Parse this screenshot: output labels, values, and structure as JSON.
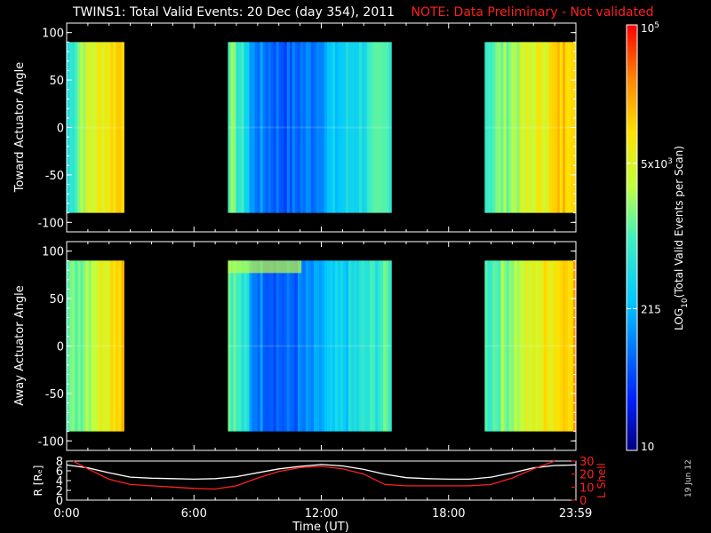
{
  "header": {
    "title": "TWINS1: Total Valid Events: 20 Dec (day 354), 2011",
    "note": "NOTE: Data Preliminary - Not validated"
  },
  "footer": {
    "date_stamp": "19 Jun 12"
  },
  "colors": {
    "background": "#000000",
    "foreground": "#ffffff",
    "note": "#ff2020",
    "r_line": "#ffffff",
    "lshell_line": "#ff2020"
  },
  "chart_data": [
    {
      "type": "heatmap",
      "panel": "toward",
      "ylabel": "Toward Actuator Angle",
      "ylim": [
        -110,
        110
      ],
      "yticks": [
        100,
        50,
        0,
        -50,
        -100
      ],
      "ytick_labels": [
        "100",
        "50",
        "0",
        "-50",
        "-100"
      ],
      "data_y_range": [
        -90,
        90
      ],
      "x_unit": "hours UT",
      "segments": [
        {
          "x_start": 0.0,
          "x_end": 2.7,
          "level_profile": "low-to-high"
        },
        {
          "x_start": 7.6,
          "x_end": 15.3,
          "level_profile": "mid-low-mid"
        },
        {
          "x_start": 19.7,
          "x_end": 24.0,
          "level_profile": "mid-to-high"
        }
      ]
    },
    {
      "type": "heatmap",
      "panel": "away",
      "ylabel": "Away Actuator Angle",
      "ylim": [
        -110,
        110
      ],
      "yticks": [
        100,
        50,
        0,
        -50,
        -100
      ],
      "ytick_labels": [
        "100",
        "50",
        "0",
        "-50",
        "-100"
      ],
      "data_y_range": [
        -90,
        90
      ],
      "x_unit": "hours UT",
      "segments": [
        {
          "x_start": 0.0,
          "x_end": 2.7,
          "level_profile": "mid-to-high"
        },
        {
          "x_start": 7.6,
          "x_end": 15.3,
          "level_profile": "mid-low-mid"
        },
        {
          "x_start": 19.7,
          "x_end": 24.0,
          "level_profile": "mid-to-high"
        }
      ]
    },
    {
      "type": "line",
      "panel": "orbit",
      "xlabel": "Time (UT)",
      "xlim": [
        0,
        24
      ],
      "xticks": [
        0.0,
        6.0,
        12.0,
        18.0,
        23.983
      ],
      "xtick_labels": [
        "0:00",
        "6:00",
        "12:00",
        "18:00",
        "23:59"
      ],
      "ylabel_left": "R [Rₑ]",
      "ylim_left": [
        0,
        8
      ],
      "yticks_left": [
        "0",
        "2",
        "4",
        "6",
        "8"
      ],
      "ylabel_right": "L Shell",
      "ylim_right": [
        0,
        30
      ],
      "yticks_right": [
        "0",
        "10",
        "20",
        "30"
      ],
      "series": [
        {
          "axis": "left",
          "x": [
            0,
            1,
            2,
            3,
            4,
            5,
            6,
            7,
            8,
            9,
            10,
            11,
            12,
            13,
            14,
            15,
            16,
            17,
            18,
            19,
            20,
            21,
            22,
            23,
            24
          ],
          "values": [
            7.2,
            6.6,
            5.6,
            4.7,
            4.5,
            4.4,
            4.3,
            4.4,
            4.8,
            5.6,
            6.4,
            6.9,
            7.3,
            7.0,
            6.3,
            5.3,
            4.6,
            4.4,
            4.3,
            4.3,
            4.7,
            5.6,
            6.6,
            7.1,
            7.2
          ]
        },
        {
          "axis": "right",
          "x": [
            0.3,
            1,
            2,
            3,
            4,
            5,
            6,
            7,
            8,
            9,
            10,
            11,
            12,
            13,
            14,
            15,
            16,
            17,
            18,
            19,
            20,
            21,
            22,
            23
          ],
          "values": [
            30,
            24,
            16,
            12,
            11,
            10,
            9,
            8.5,
            11,
            17,
            22,
            25,
            26,
            24,
            20,
            12,
            11,
            11,
            11,
            11,
            12,
            17,
            24,
            30
          ]
        }
      ]
    },
    {
      "type": "colorbar",
      "label": "LOG10(Total Valid Events per Scan)",
      "label_main": "LOG",
      "label_sub": "10",
      "label_rest": "(Total Valid Events per Scan)",
      "scale": "log",
      "range": [
        10,
        100000
      ],
      "ticks": [
        {
          "value": 100000,
          "base": "10",
          "exp": "5"
        },
        {
          "value": 5000,
          "base": "5x10",
          "exp": "3"
        },
        {
          "value": 215,
          "text": "215"
        },
        {
          "value": 10,
          "text": "10"
        }
      ]
    }
  ]
}
